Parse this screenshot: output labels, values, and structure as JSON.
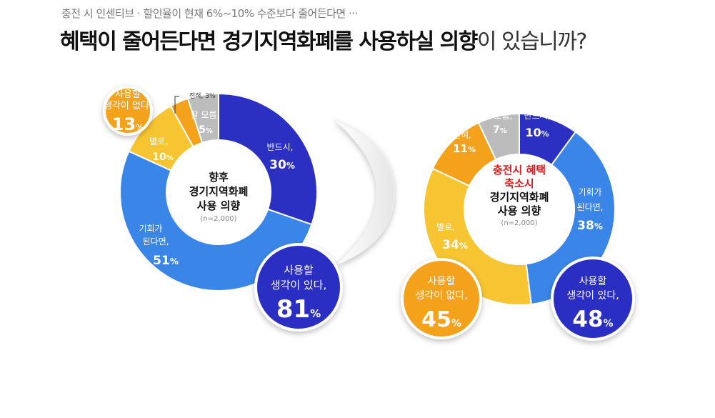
{
  "header": {
    "subtitle": "충전 시 인센티브 · 할인율이 현재 6%~10% 수준보다 줄어든다면 ···",
    "title_bold": "혜택이 줄어든다면 경기지역화폐를 사용하실 의향",
    "title_rest": "이 있습니까?"
  },
  "chart_data": [
    {
      "type": "pie",
      "center_label": [
        "향후",
        "경기지역화폐",
        "사용 의향"
      ],
      "center_label_color": "#111111",
      "center_note": "(n=2,000)",
      "slices": [
        {
          "label": "반드시,",
          "value": 30,
          "color": "#2b2fc2"
        },
        {
          "label": "기회가 된다면,",
          "value": 51,
          "color": "#3a86e8"
        },
        {
          "label": "별로,",
          "value": 10,
          "color": "#f7c531"
        },
        {
          "label": "전혀,",
          "value": 3,
          "color": "#f4a21c"
        },
        {
          "label": "잘 모름,",
          "value": 5,
          "color": "#bcbcbc"
        }
      ],
      "summary": [
        {
          "text": [
            "사용할",
            "생각이 없다,"
          ],
          "value": "13",
          "unit": "%",
          "color": "#f4a21c"
        },
        {
          "text": [
            "사용할",
            "생각이 있다,"
          ],
          "value": "81",
          "unit": "%",
          "color": "#2b2fc2"
        }
      ]
    },
    {
      "type": "pie",
      "center_label_red": [
        "충전시 혜택",
        "축소시"
      ],
      "center_label_red_color": "#e0181d",
      "center_label": [
        "경기지역화폐",
        "사용 의향"
      ],
      "center_label_color": "#111111",
      "center_note": "(n=2,000)",
      "slices": [
        {
          "label": "반드시,",
          "value": 10,
          "color": "#2b2fc2"
        },
        {
          "label": "기회가 된다면,",
          "value": 38,
          "color": "#3a86e8"
        },
        {
          "label": "별로,",
          "value": 34,
          "color": "#f7c531"
        },
        {
          "label": "전혀,",
          "value": 11,
          "color": "#f4a21c"
        },
        {
          "label": "잘 모름,",
          "value": 7,
          "color": "#bcbcbc"
        }
      ],
      "summary": [
        {
          "text": [
            "사용할",
            "생각이 없다,"
          ],
          "value": "45",
          "unit": "%",
          "color": "#f4a21c"
        },
        {
          "text": [
            "사용할",
            "생각이 있다,"
          ],
          "value": "48",
          "unit": "%",
          "color": "#2b2fc2"
        }
      ]
    }
  ]
}
